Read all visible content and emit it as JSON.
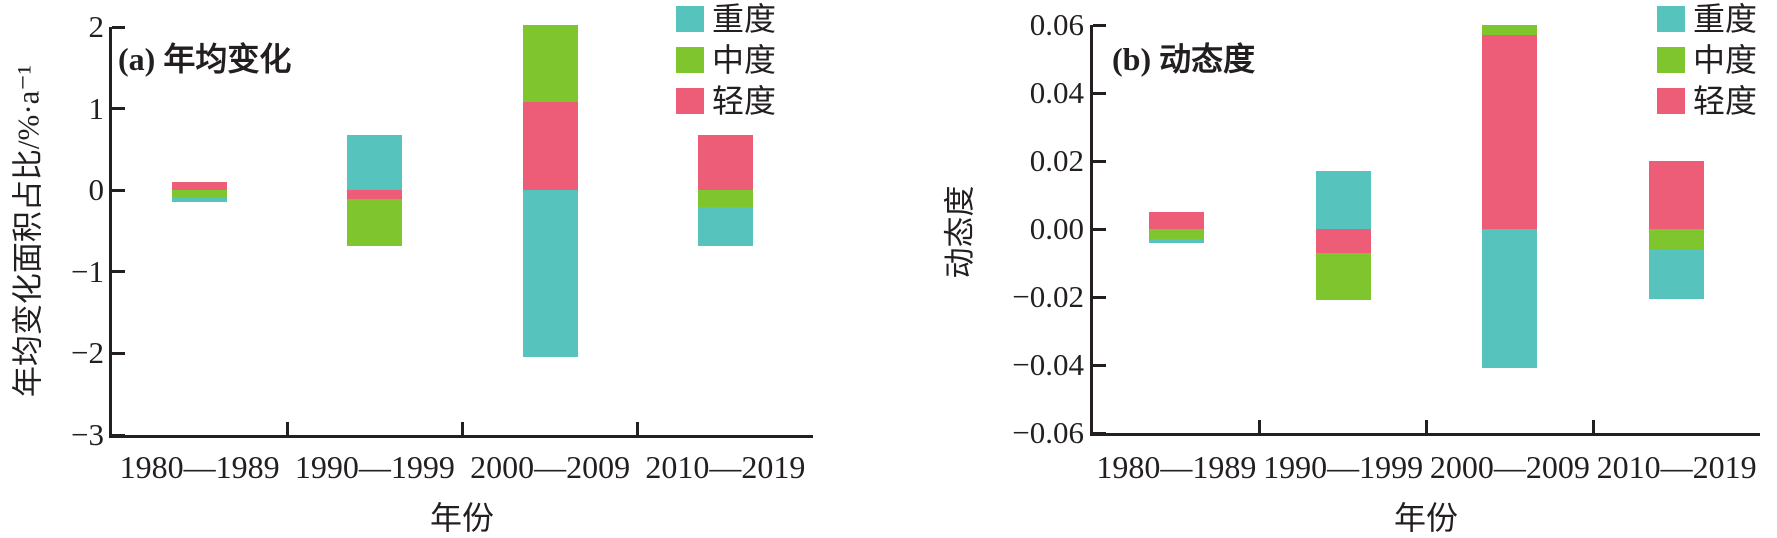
{
  "figure": {
    "text_color": "#231F20",
    "background": "#FFFFFF",
    "legend": {
      "position": "top-right",
      "items": [
        {
          "label": "重度",
          "key": "severe",
          "color": "#56C3BC"
        },
        {
          "label": "中度",
          "key": "moderate",
          "color": "#7FC62E"
        },
        {
          "label": "轻度",
          "key": "light",
          "color": "#EE5D78"
        }
      ]
    }
  },
  "chart_data": [
    {
      "type": "bar",
      "stacked": true,
      "title": "(a) 年均变化",
      "xlabel": "年份",
      "ylabel": "年均变化面积占比/%·a⁻¹",
      "categories": [
        "1980—1989",
        "1990—1999",
        "2000—2009",
        "2010—2019"
      ],
      "series": [
        {
          "name": "轻度",
          "key": "light",
          "color": "#EE5D78",
          "values": [
            0.1,
            -0.11,
            1.08,
            0.68
          ]
        },
        {
          "name": "中度",
          "key": "moderate",
          "color": "#7FC62E",
          "values": [
            -0.1,
            -0.57,
            0.94,
            -0.2
          ]
        },
        {
          "name": "重度",
          "key": "severe",
          "color": "#56C3BC",
          "values": [
            -0.05,
            0.68,
            -2.05,
            -0.48
          ]
        }
      ],
      "ylim": [
        -3,
        2
      ],
      "yticks": [
        {
          "value": 2,
          "label": "2"
        },
        {
          "value": 1,
          "label": "1"
        },
        {
          "value": 0,
          "label": "0"
        },
        {
          "value": -1,
          "label": "−1"
        },
        {
          "value": -2,
          "label": "−2"
        },
        {
          "value": -3,
          "label": "−3"
        }
      ],
      "grid": false,
      "legend_position": "top-right"
    },
    {
      "type": "bar",
      "stacked": true,
      "title": "(b) 动态度",
      "xlabel": "年份",
      "ylabel": "动态度",
      "categories": [
        "1980—1989",
        "1990—1999",
        "2000—2009",
        "2010—2019"
      ],
      "series": [
        {
          "name": "轻度",
          "key": "light",
          "color": "#EE5D78",
          "values": [
            0.005,
            -0.007,
            0.057,
            0.02
          ]
        },
        {
          "name": "中度",
          "key": "moderate",
          "color": "#7FC62E",
          "values": [
            -0.003,
            -0.014,
            0.003,
            -0.006
          ]
        },
        {
          "name": "重度",
          "key": "severe",
          "color": "#56C3BC",
          "values": [
            -0.001,
            0.017,
            -0.041,
            -0.0145
          ]
        }
      ],
      "ylim": [
        -0.06,
        0.06
      ],
      "yticks": [
        {
          "value": 0.06,
          "label": "0.06"
        },
        {
          "value": 0.04,
          "label": "0.04"
        },
        {
          "value": 0.02,
          "label": "0.02"
        },
        {
          "value": 0,
          "label": "0.00"
        },
        {
          "value": -0.02,
          "label": "−0.02"
        },
        {
          "value": -0.04,
          "label": "−0.04"
        },
        {
          "value": -0.06,
          "label": "−0.06"
        }
      ],
      "grid": false,
      "legend_position": "top-right"
    }
  ]
}
